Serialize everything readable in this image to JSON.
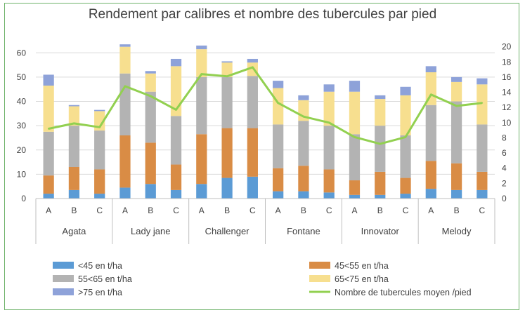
{
  "chart_data": {
    "type": "bar",
    "title": "Rendement par calibres et nombre des tubercules par pied",
    "groups": [
      "Agata",
      "Lady jane",
      "Challenger",
      "Fontane",
      "Innovator",
      "Melody"
    ],
    "categories": [
      "A",
      "B",
      "C",
      "A",
      "B",
      "C",
      "A",
      "B",
      "C",
      "A",
      "B",
      "C",
      "A",
      "B",
      "C",
      "A",
      "B",
      "C"
    ],
    "ylim": [
      0,
      65
    ],
    "y_ticks": [
      0,
      10,
      20,
      30,
      40,
      50,
      60
    ],
    "y2lim": [
      0,
      20.8
    ],
    "y2_ticks": [
      0,
      2,
      4,
      6,
      8,
      10,
      12,
      14,
      16,
      18,
      20
    ],
    "grid": true,
    "legend_position": "bottom",
    "stacked_series": [
      {
        "name": "<45 en t/ha",
        "color": "#5b9bd5",
        "values": [
          2.0,
          3.5,
          2.0,
          4.5,
          6.0,
          3.5,
          6.0,
          8.5,
          9.0,
          3.0,
          3.0,
          2.5,
          1.5,
          1.5,
          2.0,
          4.0,
          3.5,
          3.5
        ]
      },
      {
        "name": "45<55 en t/ha",
        "color": "#d98c45",
        "values": [
          7.5,
          9.5,
          10.0,
          21.5,
          17.0,
          10.5,
          20.5,
          20.5,
          20.0,
          9.5,
          10.5,
          9.5,
          6.0,
          9.5,
          6.5,
          11.5,
          11.0,
          7.5
        ]
      },
      {
        "name": "55<65 en t/ha",
        "color": "#b3b3b3",
        "values": [
          18.0,
          17.0,
          16.0,
          25.5,
          21.0,
          20.0,
          23.5,
          21.0,
          21.5,
          18.0,
          18.5,
          18.0,
          19.0,
          19.0,
          17.5,
          23.0,
          25.5,
          19.5
        ]
      },
      {
        "name": "65<75 en t/ha",
        "color": "#f7df8f",
        "values": [
          19.0,
          8.0,
          8.0,
          11.0,
          7.5,
          20.5,
          11.5,
          6.0,
          5.5,
          15.0,
          8.5,
          14.0,
          17.5,
          11.0,
          16.5,
          13.5,
          8.0,
          16.5
        ]
      },
      {
        "name": ">75 en t/ha",
        "color": "#8ea2d9",
        "values": [
          4.5,
          0.5,
          0.5,
          1.0,
          1.0,
          3.0,
          1.5,
          0.5,
          1.5,
          3.0,
          2.0,
          3.0,
          4.5,
          1.5,
          3.5,
          2.5,
          2.0,
          2.5
        ]
      }
    ],
    "line_series": {
      "name": "Nombre de tubercules moyen /pied",
      "color": "#92d050",
      "axis": "secondary",
      "values": [
        9.2,
        9.9,
        9.4,
        14.8,
        13.5,
        11.7,
        16.4,
        16.1,
        17.3,
        12.6,
        10.8,
        10.0,
        8.1,
        7.2,
        8.1,
        13.7,
        12.2,
        12.6
      ]
    }
  }
}
